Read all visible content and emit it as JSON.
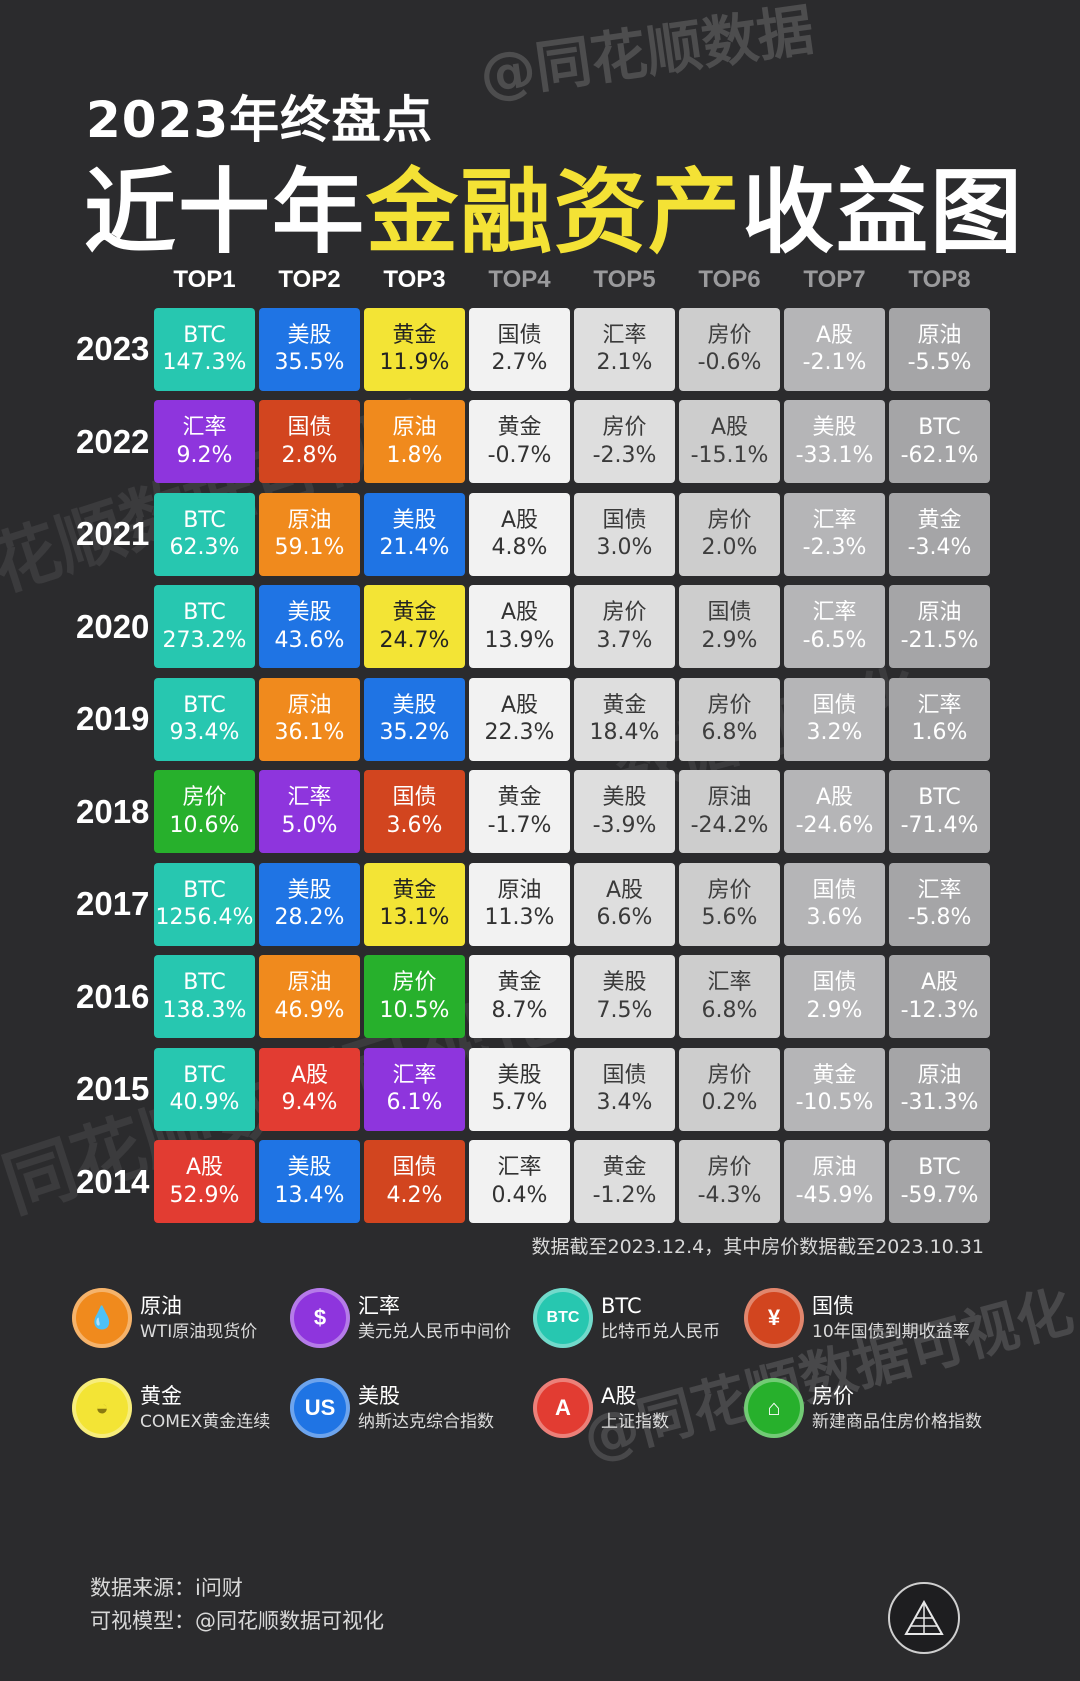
{
  "watermarks": [
    "@同花顺数据",
    "花顺数据可视化",
    "数据可视化",
    "同花顺数据可视化",
    "@同花顺数据可视化"
  ],
  "title_line1": "2023年终盘点",
  "title_line2_pre": "近十年",
  "title_line2_highlight": "金融资产",
  "title_line2_post": "收益图",
  "colors": {
    "title_highlight": "#f4e235",
    "BTC": "#27c7b0",
    "美股": "#1f74e4",
    "黄金": "#f3e435",
    "汇率": "#8e35dd",
    "国债": "#d2451f",
    "原油": "#f08a1d",
    "房价": "#27b02c",
    "A股": "#e23c32",
    "top4_bg": "#f2f2f2",
    "top5_bg": "#dedede",
    "top6_bg": "#cdcdcd",
    "top7_bg": "#b5b5b7",
    "top8_bg": "#a5a5a7"
  },
  "chart_data": {
    "type": "table",
    "columns": [
      "TOP1",
      "TOP2",
      "TOP3",
      "TOP4",
      "TOP5",
      "TOP6",
      "TOP7",
      "TOP8"
    ],
    "rows": [
      {
        "year": "2023",
        "cells": [
          {
            "asset": "BTC",
            "value": "147.3%"
          },
          {
            "asset": "美股",
            "value": "35.5%"
          },
          {
            "asset": "黄金",
            "value": "11.9%"
          },
          {
            "asset": "国债",
            "value": "2.7%"
          },
          {
            "asset": "汇率",
            "value": "2.1%"
          },
          {
            "asset": "房价",
            "value": "-0.6%"
          },
          {
            "asset": "A股",
            "value": "-2.1%"
          },
          {
            "asset": "原油",
            "value": "-5.5%"
          }
        ]
      },
      {
        "year": "2022",
        "cells": [
          {
            "asset": "汇率",
            "value": "9.2%"
          },
          {
            "asset": "国债",
            "value": "2.8%"
          },
          {
            "asset": "原油",
            "value": "1.8%"
          },
          {
            "asset": "黄金",
            "value": "-0.7%"
          },
          {
            "asset": "房价",
            "value": "-2.3%"
          },
          {
            "asset": "A股",
            "value": "-15.1%"
          },
          {
            "asset": "美股",
            "value": "-33.1%"
          },
          {
            "asset": "BTC",
            "value": "-62.1%"
          }
        ]
      },
      {
        "year": "2021",
        "cells": [
          {
            "asset": "BTC",
            "value": "62.3%"
          },
          {
            "asset": "原油",
            "value": "59.1%"
          },
          {
            "asset": "美股",
            "value": "21.4%"
          },
          {
            "asset": "A股",
            "value": "4.8%"
          },
          {
            "asset": "国债",
            "value": "3.0%"
          },
          {
            "asset": "房价",
            "value": "2.0%"
          },
          {
            "asset": "汇率",
            "value": "-2.3%"
          },
          {
            "asset": "黄金",
            "value": "-3.4%"
          }
        ]
      },
      {
        "year": "2020",
        "cells": [
          {
            "asset": "BTC",
            "value": "273.2%"
          },
          {
            "asset": "美股",
            "value": "43.6%"
          },
          {
            "asset": "黄金",
            "value": "24.7%"
          },
          {
            "asset": "A股",
            "value": "13.9%"
          },
          {
            "asset": "房价",
            "value": "3.7%"
          },
          {
            "asset": "国债",
            "value": "2.9%"
          },
          {
            "asset": "汇率",
            "value": "-6.5%"
          },
          {
            "asset": "原油",
            "value": "-21.5%"
          }
        ]
      },
      {
        "year": "2019",
        "cells": [
          {
            "asset": "BTC",
            "value": "93.4%"
          },
          {
            "asset": "原油",
            "value": "36.1%"
          },
          {
            "asset": "美股",
            "value": "35.2%"
          },
          {
            "asset": "A股",
            "value": "22.3%"
          },
          {
            "asset": "黄金",
            "value": "18.4%"
          },
          {
            "asset": "房价",
            "value": "6.8%"
          },
          {
            "asset": "国债",
            "value": "3.2%"
          },
          {
            "asset": "汇率",
            "value": "1.6%"
          }
        ]
      },
      {
        "year": "2018",
        "cells": [
          {
            "asset": "房价",
            "value": "10.6%"
          },
          {
            "asset": "汇率",
            "value": "5.0%"
          },
          {
            "asset": "国债",
            "value": "3.6%"
          },
          {
            "asset": "黄金",
            "value": "-1.7%"
          },
          {
            "asset": "美股",
            "value": "-3.9%"
          },
          {
            "asset": "原油",
            "value": "-24.2%"
          },
          {
            "asset": "A股",
            "value": "-24.6%"
          },
          {
            "asset": "BTC",
            "value": "-71.4%"
          }
        ]
      },
      {
        "year": "2017",
        "cells": [
          {
            "asset": "BTC",
            "value": "1256.4%"
          },
          {
            "asset": "美股",
            "value": "28.2%"
          },
          {
            "asset": "黄金",
            "value": "13.1%"
          },
          {
            "asset": "原油",
            "value": "11.3%"
          },
          {
            "asset": "A股",
            "value": "6.6%"
          },
          {
            "asset": "房价",
            "value": "5.6%"
          },
          {
            "asset": "国债",
            "value": "3.6%"
          },
          {
            "asset": "汇率",
            "value": "-5.8%"
          }
        ]
      },
      {
        "year": "2016",
        "cells": [
          {
            "asset": "BTC",
            "value": "138.3%"
          },
          {
            "asset": "原油",
            "value": "46.9%"
          },
          {
            "asset": "房价",
            "value": "10.5%"
          },
          {
            "asset": "黄金",
            "value": "8.7%"
          },
          {
            "asset": "美股",
            "value": "7.5%"
          },
          {
            "asset": "汇率",
            "value": "6.8%"
          },
          {
            "asset": "国债",
            "value": "2.9%"
          },
          {
            "asset": "A股",
            "value": "-12.3%"
          }
        ]
      },
      {
        "year": "2015",
        "cells": [
          {
            "asset": "BTC",
            "value": "40.9%"
          },
          {
            "asset": "A股",
            "value": "9.4%"
          },
          {
            "asset": "汇率",
            "value": "6.1%"
          },
          {
            "asset": "美股",
            "value": "5.7%"
          },
          {
            "asset": "国债",
            "value": "3.4%"
          },
          {
            "asset": "房价",
            "value": "0.2%"
          },
          {
            "asset": "黄金",
            "value": "-10.5%"
          },
          {
            "asset": "原油",
            "value": "-31.3%"
          }
        ]
      },
      {
        "year": "2014",
        "cells": [
          {
            "asset": "A股",
            "value": "52.9%"
          },
          {
            "asset": "美股",
            "value": "13.4%"
          },
          {
            "asset": "国债",
            "value": "4.2%"
          },
          {
            "asset": "汇率",
            "value": "0.4%"
          },
          {
            "asset": "黄金",
            "value": "-1.2%"
          },
          {
            "asset": "房价",
            "value": "-4.3%"
          },
          {
            "asset": "原油",
            "value": "-45.9%"
          },
          {
            "asset": "BTC",
            "value": "-59.7%"
          }
        ]
      }
    ]
  },
  "note": "数据截至2023.12.4，其中房价数据截至2023.10.31",
  "legend": [
    {
      "name": "原油",
      "desc": "WTI原油现货价",
      "icon": "oil-drop-icon",
      "glyph": "💧",
      "color": "#f08a1d"
    },
    {
      "name": "汇率",
      "desc": "美元兑人民币中间价",
      "icon": "dollar-exchange-icon",
      "glyph": "$",
      "color": "#8e35dd"
    },
    {
      "name": "BTC",
      "desc": "比特币兑人民币",
      "icon": "btc-icon",
      "glyph": "BTC",
      "color": "#27c7b0"
    },
    {
      "name": "国债",
      "desc": "10年国债到期收益率",
      "icon": "yuan-bond-icon",
      "glyph": "¥",
      "color": "#d2451f"
    },
    {
      "name": "黄金",
      "desc": "COMEX黄金连续",
      "icon": "gold-ingot-icon",
      "glyph": "◒",
      "color": "#f3e435"
    },
    {
      "name": "美股",
      "desc": "纳斯达克综合指数",
      "icon": "us-stock-icon",
      "glyph": "US",
      "color": "#1f74e4"
    },
    {
      "name": "A股",
      "desc": "上证指数",
      "icon": "a-share-icon",
      "glyph": "A",
      "color": "#e23c32"
    },
    {
      "name": "房价",
      "desc": "新建商品住房价格指数",
      "icon": "house-icon",
      "glyph": "⌂",
      "color": "#27b02c"
    }
  ],
  "source_line1": "数据来源：i问财",
  "source_line2": "可视模型：@同花顺数据可视化"
}
